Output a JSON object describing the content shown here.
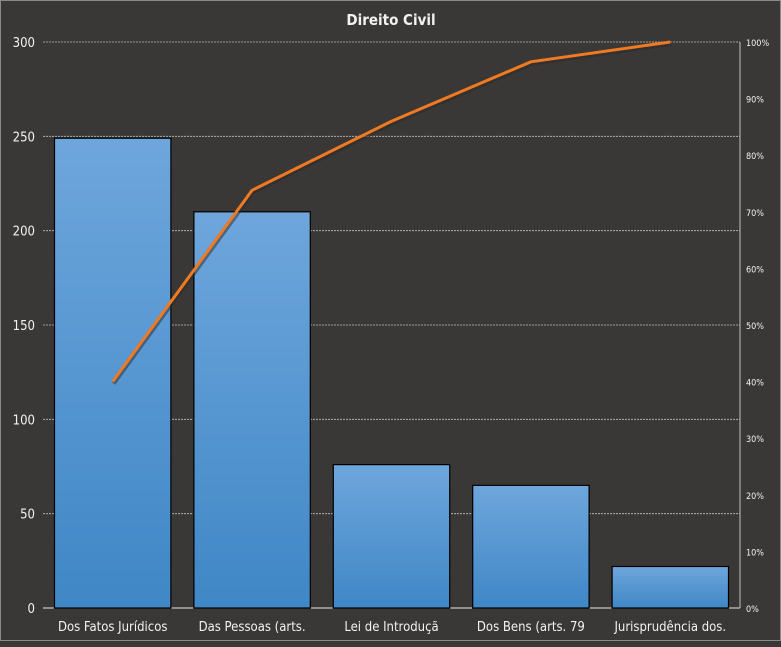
{
  "chart_data": {
    "type": "bar",
    "title": "Direito  Civil",
    "categories": [
      "Dos Fatos Jurídicos",
      "Das Pessoas (arts.",
      "Lei de Introduçã",
      "Dos Bens (arts. 79",
      "Jurisprudência  dos."
    ],
    "values": [
      249,
      210,
      76,
      65,
      22
    ],
    "ylim": [
      0,
      300
    ],
    "yticks": [
      "0",
      "50",
      "100",
      "150",
      "200",
      "250",
      "300"
    ],
    "y2lim": [
      0,
      100
    ],
    "y2ticks": [
      "0%",
      "10%",
      "20%",
      "30%",
      "40%",
      "50%",
      "60%",
      "70%",
      "80%",
      "90%",
      "100%"
    ],
    "line_series": {
      "type": "line",
      "axis": "secondary",
      "unit": "%",
      "values": [
        40.0,
        73.8,
        86.0,
        96.5,
        100
      ]
    },
    "grid": true,
    "colors": {
      "bar": "#4a8fd0",
      "line": "#f07a22",
      "background": "#3a3836",
      "grid": "#bfbfbf"
    }
  }
}
